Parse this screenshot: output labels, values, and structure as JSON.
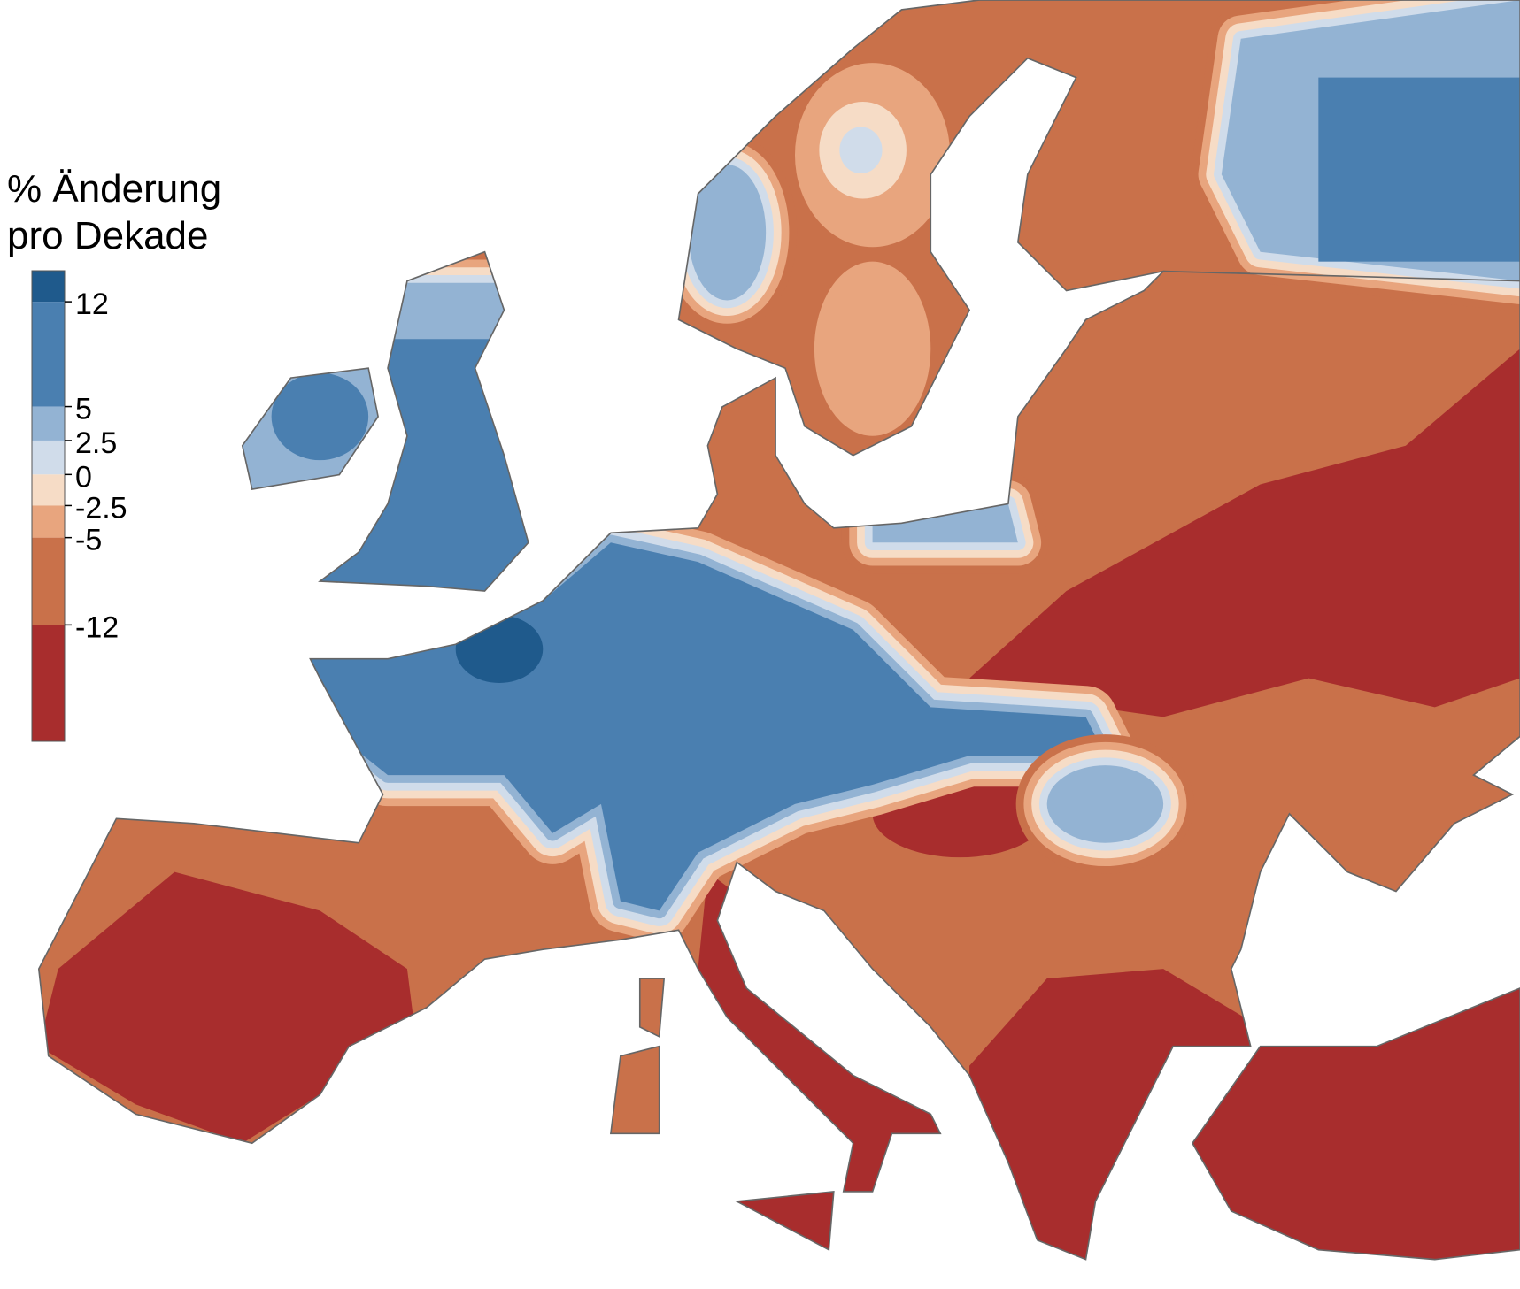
{
  "legend": {
    "title": [
      "% Änderung",
      "pro Dekade"
    ],
    "ticks": [
      12,
      5,
      2.5,
      0,
      -2.5,
      -5,
      -12
    ],
    "colors": [
      "#1f5a8c",
      "#4a7fb0",
      "#93b3d3",
      "#d0dcea",
      "#f6dcc6",
      "#e8a57e",
      "#c9714a",
      "#a82d2d"
    ]
  }
}
